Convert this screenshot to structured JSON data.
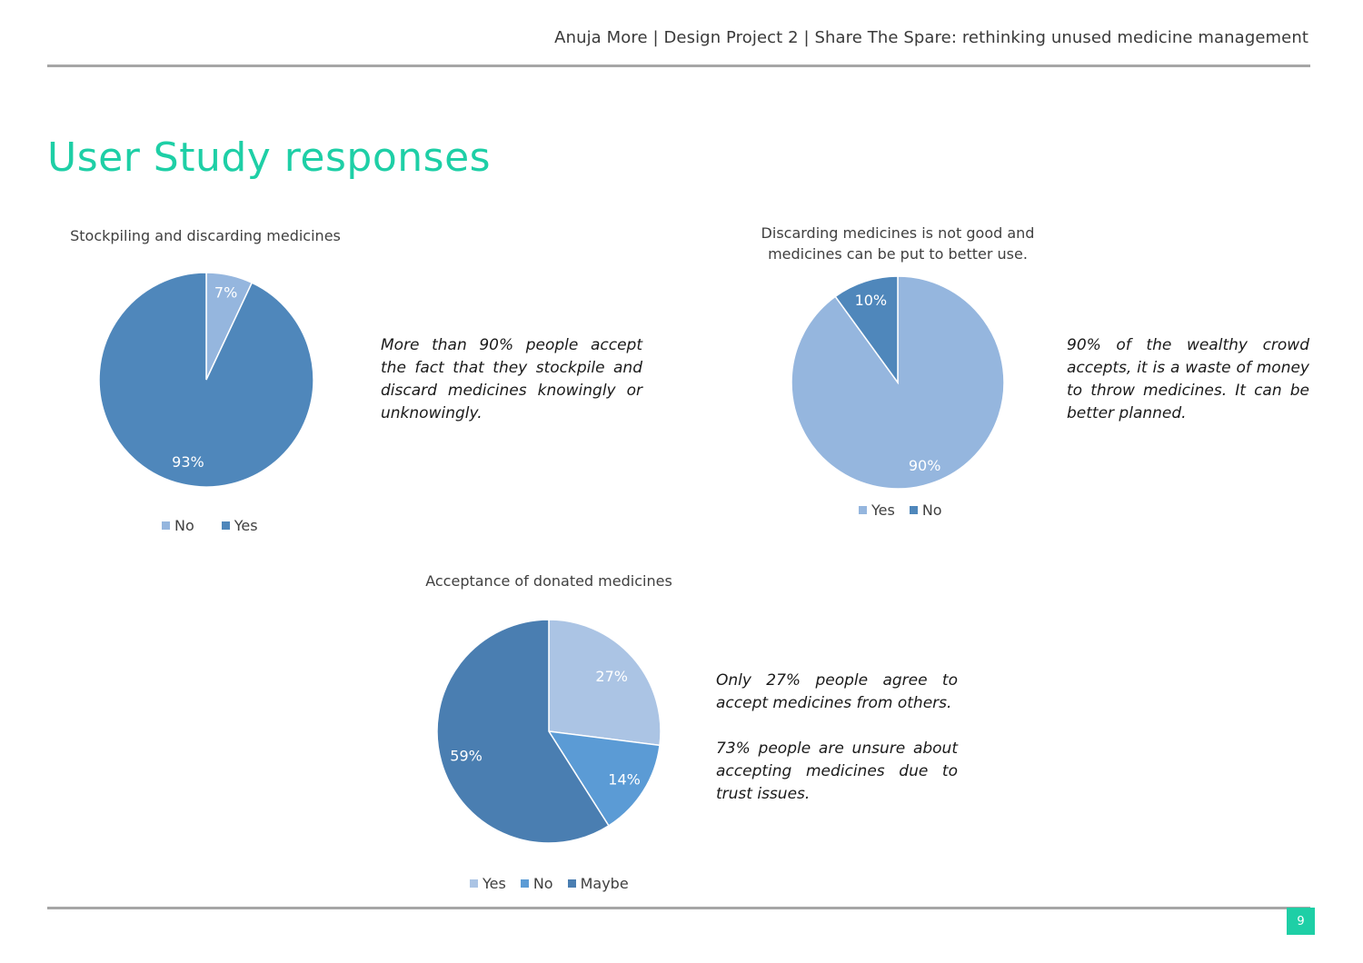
{
  "header": {
    "text": "Anuja More | Design Project 2 | Share The Spare: rethinking unused medicine management"
  },
  "page": {
    "title": "User Study responses",
    "number": "9"
  },
  "colors": {
    "accent": "#1ecfa6",
    "rule": "#a6a6a6"
  },
  "notes": {
    "stockpiling": "More than 90% people accept the fact that they stockpile and discard medicines knowingly or unknowingly.",
    "discarding": "90% of the wealthy crowd accepts, it is a waste of money to throw medicines. It can be better planned.",
    "acceptance_1": "Only 27% people agree to accept medicines from others.",
    "acceptance_2": "73% people are unsure about accepting medicines due to trust issues."
  },
  "chart_data": [
    {
      "type": "pie",
      "title": "Stockpiling and discarding medicines",
      "categories": [
        "No",
        "Yes"
      ],
      "values": [
        7,
        93
      ],
      "labels": [
        "7%",
        "93%"
      ],
      "colors": [
        "#95b6de",
        "#4f87bb"
      ],
      "legend": "bottom"
    },
    {
      "type": "pie",
      "title": "Discarding medicines is not good and medicines can be put to better use.",
      "categories": [
        "Yes",
        "No"
      ],
      "values": [
        90,
        10
      ],
      "labels": [
        "90%",
        "10%"
      ],
      "colors": [
        "#95b6de",
        "#4f87bb"
      ],
      "legend": "bottom"
    },
    {
      "type": "pie",
      "title": "Acceptance of donated medicines",
      "categories": [
        "Yes",
        "No",
        "Maybe"
      ],
      "values": [
        27,
        14,
        59
      ],
      "labels": [
        "27%",
        "14%",
        "59%"
      ],
      "colors": [
        "#abc4e4",
        "#5b9bd5",
        "#4a7eb1"
      ],
      "legend": "bottom"
    }
  ]
}
